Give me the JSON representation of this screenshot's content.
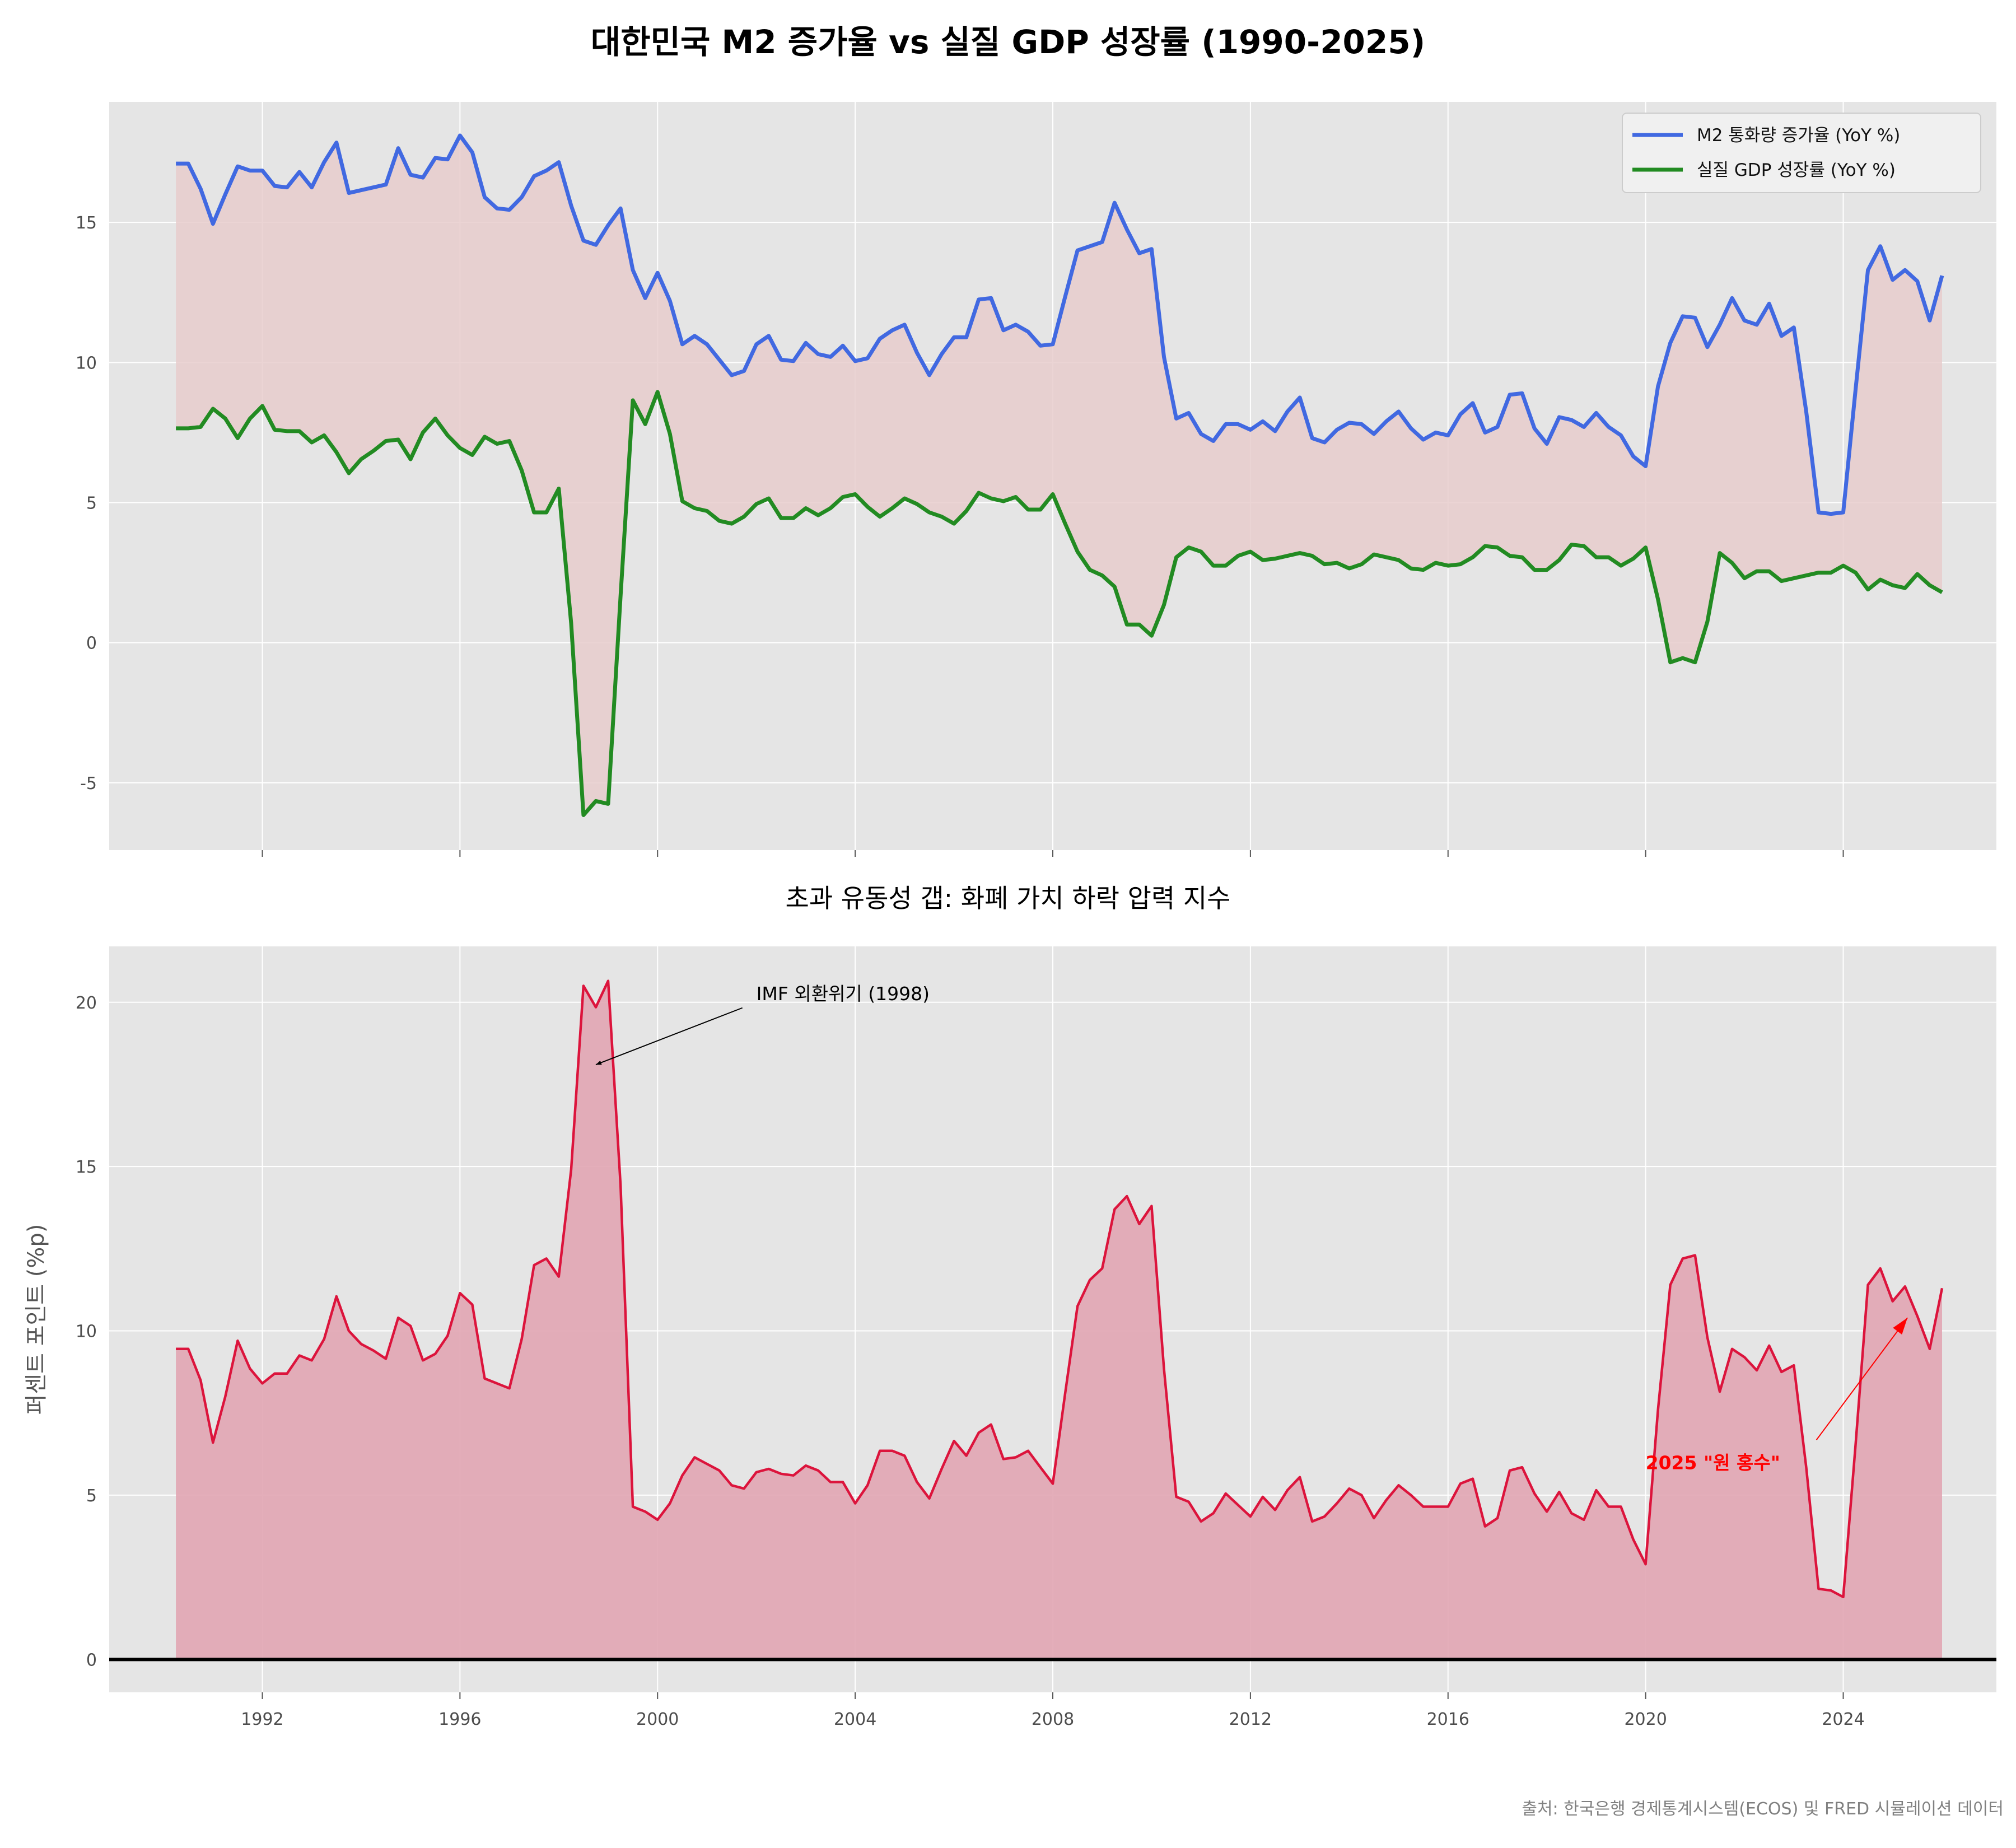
{
  "title": "대한민국 M2 증가율 vs 실질 GDP 성장률 (1990-2025)",
  "source_note": "출처: 한국은행 경제통계시스템(ECOS) 및 FRED 시뮬레이션 데이터",
  "colors": {
    "m2": "#4169e1",
    "gdp": "#228b22",
    "gap_fill_top": "#e8cccc",
    "gap_line": "#dc143c",
    "gap_fill": "#e1a5b2",
    "panel_bg": "#e5e5e5",
    "grid": "#ffffff",
    "annotation_red": "#ff0000"
  },
  "chart_data": [
    {
      "type": "line",
      "title": "",
      "xlabel": "",
      "ylabel": "",
      "xlim": [
        1988.9,
        2027.1
      ],
      "ylim": [
        -7.4,
        19.3
      ],
      "yticks": [
        -5,
        0,
        5,
        10,
        15
      ],
      "ytick_labels": [
        "-5",
        "0",
        "5",
        "10",
        "15"
      ],
      "grid": true,
      "legend_position": "upper-right",
      "fill_between": "series 0 and series 1",
      "x": [
        1990.25,
        1990.5,
        1990.75,
        1991.0,
        1991.25,
        1991.5,
        1991.75,
        1992.0,
        1992.25,
        1992.5,
        1992.75,
        1993.0,
        1993.25,
        1993.5,
        1993.75,
        1994.0,
        1994.25,
        1994.5,
        1994.75,
        1995.0,
        1995.25,
        1995.5,
        1995.75,
        1996.0,
        1996.25,
        1996.5,
        1996.75,
        1997.0,
        1997.25,
        1997.5,
        1997.75,
        1998.0,
        1998.25,
        1998.5,
        1998.75,
        1999.0,
        1999.25,
        1999.5,
        1999.75,
        2000.0,
        2000.25,
        2000.5,
        2000.75,
        2001.0,
        2001.25,
        2001.5,
        2001.75,
        2002.0,
        2002.25,
        2002.5,
        2002.75,
        2003.0,
        2003.25,
        2003.5,
        2003.75,
        2004.0,
        2004.25,
        2004.5,
        2004.75,
        2005.0,
        2005.25,
        2005.5,
        2005.75,
        2006.0,
        2006.25,
        2006.5,
        2006.75,
        2007.0,
        2007.25,
        2007.5,
        2007.75,
        2008.0,
        2008.25,
        2008.5,
        2008.75,
        2009.0,
        2009.25,
        2009.5,
        2009.75,
        2010.0,
        2010.25,
        2010.5,
        2010.75,
        2011.0,
        2011.25,
        2011.5,
        2011.75,
        2012.0,
        2012.25,
        2012.5,
        2012.75,
        2013.0,
        2013.25,
        2013.5,
        2013.75,
        2014.0,
        2014.25,
        2014.5,
        2014.75,
        2015.0,
        2015.25,
        2015.5,
        2015.75,
        2016.0,
        2016.25,
        2016.5,
        2016.75,
        2017.0,
        2017.25,
        2017.5,
        2017.75,
        2018.0,
        2018.25,
        2018.5,
        2018.75,
        2019.0,
        2019.25,
        2019.5,
        2019.75,
        2020.0,
        2020.25,
        2020.5,
        2020.75,
        2021.0,
        2021.25,
        2021.5,
        2021.75,
        2022.0,
        2022.25,
        2022.5,
        2022.75,
        2023.0,
        2023.25,
        2023.5,
        2023.75,
        2024.0,
        2024.25,
        2024.5,
        2024.75,
        2025.0,
        2025.25,
        2025.5,
        2025.75,
        2026.0
      ],
      "series": [
        {
          "name": "M2 통화량 증가율 (YoY %)",
          "color": "#4169e1",
          "values": [
            17.1,
            17.1,
            16.2,
            14.95,
            16.0,
            17.0,
            16.85,
            16.85,
            16.3,
            16.25,
            16.8,
            16.25,
            17.15,
            17.85,
            16.05,
            16.15,
            16.25,
            16.35,
            17.65,
            16.7,
            16.6,
            17.3,
            17.25,
            18.1,
            17.5,
            15.9,
            15.5,
            15.45,
            15.9,
            16.65,
            16.85,
            17.15,
            15.6,
            14.35,
            14.2,
            14.9,
            15.5,
            13.3,
            12.3,
            13.2,
            12.2,
            10.65,
            10.95,
            10.65,
            10.1,
            9.55,
            9.7,
            10.65,
            10.95,
            10.1,
            10.05,
            10.7,
            10.3,
            10.2,
            10.6,
            10.05,
            10.15,
            10.85,
            11.15,
            11.35,
            10.35,
            9.55,
            10.3,
            10.9,
            10.9,
            12.25,
            12.3,
            11.15,
            11.35,
            11.1,
            10.6,
            10.65,
            12.35,
            14.0,
            14.15,
            14.3,
            15.7,
            14.75,
            13.9,
            14.05,
            10.2,
            8.0,
            8.2,
            7.45,
            7.2,
            7.8,
            7.8,
            7.6,
            7.9,
            7.55,
            8.25,
            8.75,
            7.3,
            7.15,
            7.6,
            7.85,
            7.8,
            7.45,
            7.9,
            8.25,
            7.65,
            7.25,
            7.5,
            7.4,
            8.15,
            8.55,
            7.5,
            7.7,
            8.85,
            8.9,
            7.65,
            7.1,
            8.05,
            7.95,
            7.7,
            8.2,
            7.7,
            7.4,
            6.65,
            6.3,
            9.15,
            10.7,
            11.65,
            11.6,
            10.55,
            11.35,
            12.3,
            11.5,
            11.35,
            12.1,
            10.95,
            11.25,
            8.25,
            4.65,
            4.6,
            4.65,
            9.05,
            13.3,
            14.15,
            12.95,
            13.3,
            12.9,
            11.5,
            13.1
          ]
        },
        {
          "name": "실질 GDP 성장률 (YoY %)",
          "color": "#228b22",
          "values": [
            7.65,
            7.65,
            7.7,
            8.35,
            8.0,
            7.3,
            8.0,
            8.45,
            7.6,
            7.55,
            7.55,
            7.15,
            7.4,
            6.8,
            6.05,
            6.55,
            6.85,
            7.2,
            7.25,
            6.55,
            7.5,
            8.0,
            7.4,
            6.95,
            6.7,
            7.35,
            7.1,
            7.2,
            6.15,
            4.65,
            4.65,
            5.5,
            0.7,
            -6.15,
            -5.65,
            -5.75,
            1.65,
            8.65,
            7.8,
            8.95,
            7.45,
            5.05,
            4.8,
            4.7,
            4.35,
            4.25,
            4.5,
            4.95,
            5.15,
            4.45,
            4.45,
            4.8,
            4.55,
            4.8,
            5.2,
            5.3,
            4.85,
            4.5,
            4.8,
            5.15,
            4.95,
            4.65,
            4.5,
            4.25,
            4.7,
            5.35,
            5.15,
            5.05,
            5.2,
            4.75,
            4.75,
            5.3,
            4.25,
            3.25,
            2.6,
            2.4,
            2.0,
            0.65,
            0.65,
            0.25,
            1.35,
            3.05,
            3.4,
            3.25,
            2.75,
            2.75,
            3.1,
            3.25,
            2.95,
            3.0,
            3.1,
            3.2,
            3.1,
            2.8,
            2.85,
            2.65,
            2.8,
            3.15,
            3.05,
            2.95,
            2.65,
            2.6,
            2.85,
            2.75,
            2.8,
            3.05,
            3.45,
            3.4,
            3.1,
            3.05,
            2.6,
            2.6,
            2.95,
            3.5,
            3.45,
            3.05,
            3.05,
            2.75,
            3.0,
            3.4,
            1.55,
            -0.7,
            -0.55,
            -0.7,
            0.75,
            3.2,
            2.85,
            2.3,
            2.55,
            2.55,
            2.2,
            2.3,
            2.4,
            2.5,
            2.5,
            2.75,
            2.5,
            1.9,
            2.25,
            2.05,
            1.95,
            2.45,
            2.05,
            1.8
          ]
        }
      ]
    },
    {
      "type": "area",
      "title": "초과 유동성 갭: 화폐 가치 하락 압력 지수",
      "xlabel": "",
      "ylabel": "퍼센트 포인트 (%p)",
      "xlim": [
        1988.9,
        2027.1
      ],
      "ylim": [
        -1.0,
        21.7
      ],
      "yticks": [
        0,
        5,
        10,
        15,
        20
      ],
      "ytick_labels": [
        "0",
        "5",
        "10",
        "15",
        "20"
      ],
      "xticks": [
        1992,
        1996,
        2000,
        2004,
        2008,
        2012,
        2016,
        2020,
        2024
      ],
      "xtick_labels": [
        "1992",
        "1996",
        "2000",
        "2004",
        "2008",
        "2012",
        "2016",
        "2020",
        "2024"
      ],
      "grid": true,
      "series": [
        {
          "name": "",
          "color": "#dc143c",
          "values": [
            9.45,
            9.45,
            8.5,
            6.6,
            8.0,
            9.7,
            8.85,
            8.4,
            8.7,
            8.7,
            9.25,
            9.1,
            9.75,
            11.05,
            10.0,
            9.6,
            9.4,
            9.15,
            10.4,
            10.15,
            9.1,
            9.3,
            9.85,
            11.15,
            10.8,
            8.55,
            8.4,
            8.25,
            9.75,
            12.0,
            12.2,
            11.65,
            14.9,
            20.5,
            19.85,
            20.65,
            14.45,
            4.65,
            4.5,
            4.25,
            4.75,
            5.6,
            6.15,
            5.95,
            5.75,
            5.3,
            5.2,
            5.7,
            5.8,
            5.65,
            5.6,
            5.9,
            5.75,
            5.4,
            5.4,
            4.75,
            5.3,
            6.35,
            6.35,
            6.2,
            5.4,
            4.9,
            5.8,
            6.65,
            6.2,
            6.9,
            7.15,
            6.1,
            6.15,
            6.35,
            5.85,
            5.35,
            8.1,
            10.75,
            11.55,
            11.9,
            13.7,
            14.1,
            13.25,
            13.8,
            8.85,
            4.95,
            4.8,
            4.2,
            4.45,
            5.05,
            4.7,
            4.35,
            4.95,
            4.55,
            5.15,
            5.55,
            4.2,
            4.35,
            4.75,
            5.2,
            5.0,
            4.3,
            4.85,
            5.3,
            5.0,
            4.65,
            4.65,
            4.65,
            5.35,
            5.5,
            4.05,
            4.3,
            5.75,
            5.85,
            5.05,
            4.5,
            5.1,
            4.45,
            4.25,
            5.15,
            4.65,
            4.65,
            3.65,
            2.9,
            7.6,
            11.4,
            12.2,
            12.3,
            9.8,
            8.15,
            9.45,
            9.2,
            8.8,
            9.55,
            8.75,
            8.95,
            5.85,
            2.15,
            2.1,
            1.9,
            6.55,
            11.4,
            11.9,
            10.9,
            11.35,
            10.45,
            9.45,
            11.3
          ]
        }
      ],
      "annotations": [
        {
          "text": "IMF 외환위기 (1998)",
          "x": 1998.75,
          "y": 18.1,
          "text_x": 2002.0,
          "text_y": 20.0,
          "color": "#000000"
        },
        {
          "text": "2025 \"원 홍수\"",
          "x": 2025.3,
          "y": 10.4,
          "text_x": 2020.0,
          "text_y": 6.0,
          "color": "#ff0000"
        }
      ]
    }
  ]
}
